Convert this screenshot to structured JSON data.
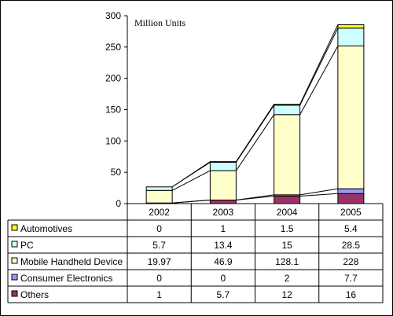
{
  "chart_data": {
    "type": "bar",
    "stacked": true,
    "unit_label": "Million Units",
    "categories": [
      "2002",
      "2003",
      "2004",
      "2005"
    ],
    "ylim": [
      0,
      300
    ],
    "yticks": [
      0,
      50,
      100,
      150,
      200,
      250,
      300
    ],
    "grid": false,
    "legend": "data-table",
    "series": [
      {
        "name": "Others",
        "color": "#993366",
        "values": [
          1,
          5.7,
          12,
          16
        ]
      },
      {
        "name": "Consumer Electronics",
        "color": "#9999ff",
        "values": [
          0,
          0,
          2,
          7.7
        ]
      },
      {
        "name": "Mobile Handheld Device",
        "color": "#ffffcc",
        "values": [
          19.97,
          46.9,
          128.1,
          228
        ]
      },
      {
        "name": "PC",
        "color": "#ccffff",
        "values": [
          5.7,
          13.4,
          15,
          28.5
        ]
      },
      {
        "name": "Automotives",
        "color": "#ffff00",
        "values": [
          0,
          1,
          1.5,
          5.4
        ]
      }
    ],
    "table_rows": [
      {
        "name": "Automotives",
        "color": "#ffff00",
        "values": [
          "0",
          "1",
          "1.5",
          "5.4"
        ]
      },
      {
        "name": "PC",
        "color": "#ccffff",
        "values": [
          "5.7",
          "13.4",
          "15",
          "28.5"
        ]
      },
      {
        "name": "Mobile Handheld Device",
        "color": "#ffffcc",
        "values": [
          "19.97",
          "46.9",
          "128.1",
          "228"
        ]
      },
      {
        "name": "Consumer Electronics",
        "color": "#9999ff",
        "values": [
          "0",
          "0",
          "2",
          "7.7"
        ]
      },
      {
        "name": "Others",
        "color": "#993366",
        "values": [
          "1",
          "5.7",
          "12",
          "16"
        ]
      }
    ]
  }
}
